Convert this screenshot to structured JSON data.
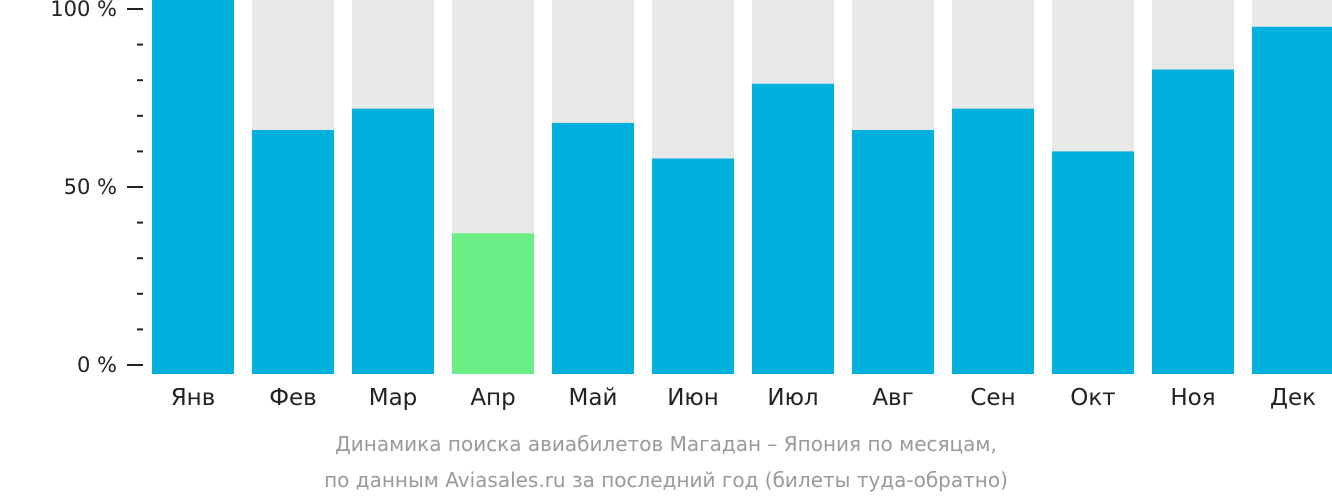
{
  "chart_data": {
    "type": "bar",
    "categories": [
      "Янв",
      "Фев",
      "Мар",
      "Апр",
      "Май",
      "Июн",
      "Июл",
      "Авг",
      "Сен",
      "Окт",
      "Ноя",
      "Дек"
    ],
    "values": [
      100,
      66,
      72,
      37,
      68,
      58,
      79,
      66,
      72,
      60,
      83,
      95
    ],
    "highlight_index": 3,
    "ylim": [
      0,
      100
    ],
    "yticks": [
      {
        "value": 100,
        "label": "100 %"
      },
      {
        "value": 50,
        "label": "50 %"
      },
      {
        "value": 0,
        "label": "0 %"
      }
    ],
    "minor_tick_step": 10,
    "colors": {
      "bar": "#00b0dd",
      "highlight": "#6cee86",
      "background_bar": "#e8e8e8",
      "axis": "#222222"
    },
    "caption": {
      "line1": "Динамика поиска авиабилетов Магадан – Япония по месяцам,",
      "line2": "по данным Aviasales.ru за последний год (билеты туда-обратно)"
    }
  }
}
